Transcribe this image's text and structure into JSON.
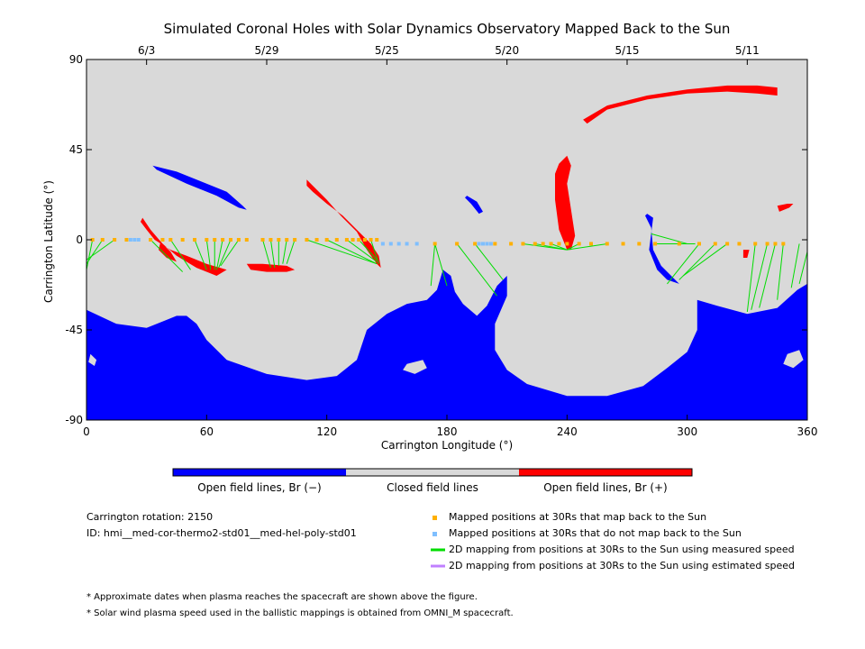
{
  "chart_data": {
    "type": "map",
    "title": "Simulated Coronal Holes with Solar Dynamics Observatory Mapped Back to the Sun",
    "xlabel": "Carrington Longitude (°)",
    "ylabel": "Carrington Latitude (°)",
    "xlim": [
      0,
      360
    ],
    "ylim": [
      -90,
      90
    ],
    "x_ticks": [
      "0",
      "60",
      "120",
      "180",
      "240",
      "300",
      "360"
    ],
    "y_ticks": [
      "90",
      "45",
      "0",
      "-45",
      "-90"
    ],
    "top_date_ticks": [
      {
        "label": "6/3",
        "lon": 30
      },
      {
        "label": "5/29",
        "lon": 90
      },
      {
        "label": "5/25",
        "lon": 150
      },
      {
        "label": "5/20",
        "lon": 210
      },
      {
        "label": "5/15",
        "lon": 270
      },
      {
        "label": "5/11",
        "lon": 330
      }
    ],
    "colors": {
      "closed": "#d9d9d9",
      "open_negative": "#0000ff",
      "open_positive": "#ff0000",
      "mapped_yes": "#ffb000",
      "mapped_no": "#7fbfff",
      "measured_line": "#00dd00",
      "estimated_line": "#c080ff"
    },
    "open_negative_regions": [
      [
        [
          0,
          -35
        ],
        [
          15,
          -42
        ],
        [
          30,
          -44
        ],
        [
          40,
          -40
        ],
        [
          45,
          -38
        ],
        [
          50,
          -38
        ],
        [
          55,
          -42
        ],
        [
          60,
          -50
        ],
        [
          70,
          -60
        ],
        [
          90,
          -67
        ],
        [
          110,
          -70
        ],
        [
          125,
          -68
        ],
        [
          135,
          -60
        ],
        [
          140,
          -45
        ],
        [
          150,
          -37
        ],
        [
          160,
          -32
        ],
        [
          170,
          -30
        ],
        [
          175,
          -25
        ],
        [
          178,
          -15
        ],
        [
          182,
          -18
        ],
        [
          184,
          -26
        ],
        [
          188,
          -32
        ],
        [
          195,
          -38
        ],
        [
          200,
          -33
        ],
        [
          205,
          -23
        ],
        [
          210,
          -18
        ],
        [
          210,
          -28
        ],
        [
          204,
          -42
        ],
        [
          204,
          -55
        ],
        [
          210,
          -65
        ],
        [
          220,
          -72
        ],
        [
          240,
          -78
        ],
        [
          260,
          -78
        ],
        [
          278,
          -73
        ],
        [
          290,
          -64
        ],
        [
          300,
          -56
        ],
        [
          305,
          -45
        ],
        [
          305,
          -30
        ],
        [
          315,
          -33
        ],
        [
          330,
          -37
        ],
        [
          345,
          -34
        ],
        [
          355,
          -25
        ],
        [
          360,
          -22
        ],
        [
          360,
          -90
        ],
        [
          0,
          -90
        ]
      ],
      [
        [
          33,
          37
        ],
        [
          45,
          34
        ],
        [
          60,
          28
        ],
        [
          70,
          24
        ],
        [
          78,
          17
        ],
        [
          80,
          15
        ],
        [
          76,
          16
        ],
        [
          65,
          22
        ],
        [
          50,
          28
        ],
        [
          35,
          35
        ]
      ],
      [
        [
          190,
          22
        ],
        [
          195,
          19
        ],
        [
          198,
          14
        ],
        [
          196,
          13
        ],
        [
          192,
          18
        ],
        [
          189,
          21
        ]
      ],
      [
        [
          280,
          13
        ],
        [
          283,
          11
        ],
        [
          281,
          -5
        ],
        [
          285,
          -15
        ],
        [
          290,
          -20
        ],
        [
          296,
          -22
        ],
        [
          294,
          -20
        ],
        [
          287,
          -13
        ],
        [
          283,
          -5
        ],
        [
          282,
          6
        ],
        [
          279,
          12
        ]
      ]
    ],
    "closed_holes_in_negative": [
      [
        [
          2,
          -57
        ],
        [
          5,
          -60
        ],
        [
          4,
          -63
        ],
        [
          1,
          -61
        ]
      ],
      [
        [
          160,
          -62
        ],
        [
          168,
          -60
        ],
        [
          170,
          -64
        ],
        [
          164,
          -67
        ],
        [
          158,
          -65
        ]
      ],
      [
        [
          350,
          -57
        ],
        [
          356,
          -55
        ],
        [
          358,
          -60
        ],
        [
          353,
          -64
        ],
        [
          348,
          -62
        ]
      ]
    ],
    "open_positive_regions": [
      [
        [
          248,
          60
        ],
        [
          260,
          67
        ],
        [
          280,
          72
        ],
        [
          300,
          75
        ],
        [
          320,
          77
        ],
        [
          335,
          77
        ],
        [
          345,
          76
        ],
        [
          345,
          72
        ],
        [
          335,
          73
        ],
        [
          320,
          74
        ],
        [
          300,
          73
        ],
        [
          280,
          70
        ],
        [
          260,
          65
        ],
        [
          250,
          58
        ]
      ],
      [
        [
          240,
          42
        ],
        [
          242,
          37
        ],
        [
          240,
          28
        ],
        [
          242,
          15
        ],
        [
          244,
          2
        ],
        [
          242,
          -5
        ],
        [
          240,
          -5
        ],
        [
          236,
          5
        ],
        [
          234,
          20
        ],
        [
          234,
          33
        ],
        [
          236,
          38
        ]
      ],
      [
        [
          110,
          30
        ],
        [
          113,
          27
        ],
        [
          120,
          20
        ],
        [
          127,
          12
        ],
        [
          135,
          4
        ],
        [
          140,
          -5
        ],
        [
          145,
          -12
        ],
        [
          147,
          -14
        ],
        [
          146,
          -8
        ],
        [
          142,
          -2
        ],
        [
          135,
          5
        ],
        [
          128,
          12
        ],
        [
          120,
          18
        ],
        [
          113,
          24
        ],
        [
          110,
          27
        ]
      ],
      [
        [
          28,
          11
        ],
        [
          32,
          5
        ],
        [
          38,
          -2
        ],
        [
          45,
          -8
        ],
        [
          55,
          -14
        ],
        [
          65,
          -18
        ],
        [
          70,
          -15
        ],
        [
          60,
          -12
        ],
        [
          50,
          -8
        ],
        [
          42,
          -5
        ],
        [
          34,
          0
        ],
        [
          30,
          5
        ],
        [
          27,
          9
        ]
      ],
      [
        [
          37,
          -1
        ],
        [
          42,
          -6
        ],
        [
          45,
          -11
        ],
        [
          40,
          -9
        ],
        [
          36,
          -5
        ]
      ],
      [
        [
          80,
          -12
        ],
        [
          88,
          -12
        ],
        [
          100,
          -13
        ],
        [
          104,
          -15
        ],
        [
          100,
          -16
        ],
        [
          90,
          -16
        ],
        [
          82,
          -15
        ]
      ],
      [
        [
          345,
          17
        ],
        [
          350,
          18
        ],
        [
          353,
          18
        ],
        [
          351,
          16
        ],
        [
          346,
          14
        ]
      ],
      [
        [
          328,
          -5
        ],
        [
          331,
          -5
        ],
        [
          330,
          -9
        ],
        [
          328,
          -9
        ]
      ]
    ],
    "mapped_yes_points": [
      [
        3,
        0
      ],
      [
        8,
        0
      ],
      [
        14,
        0
      ],
      [
        20,
        0
      ],
      [
        32,
        0
      ],
      [
        38,
        0
      ],
      [
        42,
        0
      ],
      [
        48,
        0
      ],
      [
        54,
        0
      ],
      [
        60,
        0
      ],
      [
        64,
        0
      ],
      [
        68,
        0
      ],
      [
        72,
        0
      ],
      [
        76,
        0
      ],
      [
        80,
        0
      ],
      [
        88,
        0
      ],
      [
        92,
        0
      ],
      [
        96,
        0
      ],
      [
        100,
        0
      ],
      [
        104,
        0
      ],
      [
        110,
        0
      ],
      [
        115,
        0
      ],
      [
        120,
        0
      ],
      [
        125,
        0
      ],
      [
        130,
        0
      ],
      [
        133,
        0
      ],
      [
        136,
        0
      ],
      [
        139,
        0
      ],
      [
        142,
        0
      ],
      [
        145,
        0
      ],
      [
        174,
        -2
      ],
      [
        185,
        -2
      ],
      [
        194,
        -2
      ],
      [
        204,
        -2
      ],
      [
        212,
        -2
      ],
      [
        218,
        -2
      ],
      [
        224,
        -2
      ],
      [
        228,
        -2
      ],
      [
        232,
        -2
      ],
      [
        236,
        -2
      ],
      [
        240,
        -2
      ],
      [
        246,
        -2
      ],
      [
        252,
        -2
      ],
      [
        260,
        -2
      ],
      [
        268,
        -2
      ],
      [
        276,
        -2
      ],
      [
        284,
        -2
      ],
      [
        296,
        -2
      ],
      [
        306,
        -2
      ],
      [
        314,
        -2
      ],
      [
        320,
        -2
      ],
      [
        326,
        -2
      ],
      [
        334,
        -2
      ],
      [
        340,
        -2
      ],
      [
        344,
        -2
      ],
      [
        348,
        -2
      ]
    ],
    "mapped_no_points": [
      [
        22,
        0
      ],
      [
        24,
        0
      ],
      [
        26,
        0
      ],
      [
        148,
        -2
      ],
      [
        152,
        -2
      ],
      [
        156,
        -2
      ],
      [
        160,
        -2
      ],
      [
        165,
        -2
      ],
      [
        196,
        -2
      ],
      [
        198,
        -2
      ],
      [
        200,
        -2
      ],
      [
        202,
        -2
      ]
    ],
    "measured_speed_lines": [
      {
        "from": [
          3,
          0
        ],
        "to": [
          0,
          -15
        ]
      },
      {
        "from": [
          8,
          0
        ],
        "to": [
          0,
          -12
        ]
      },
      {
        "from": [
          14,
          0
        ],
        "to": [
          0,
          -10
        ]
      },
      {
        "from": [
          32,
          0
        ],
        "to": [
          48,
          -16
        ]
      },
      {
        "from": [
          42,
          0
        ],
        "to": [
          52,
          -15
        ]
      },
      {
        "from": [
          54,
          0
        ],
        "to": [
          60,
          -15
        ]
      },
      {
        "from": [
          60,
          0
        ],
        "to": [
          62,
          -15
        ]
      },
      {
        "from": [
          64,
          0
        ],
        "to": [
          64,
          -15
        ]
      },
      {
        "from": [
          68,
          0
        ],
        "to": [
          65,
          -15
        ]
      },
      {
        "from": [
          72,
          0
        ],
        "to": [
          66,
          -14
        ]
      },
      {
        "from": [
          76,
          0
        ],
        "to": [
          67,
          -13
        ]
      },
      {
        "from": [
          88,
          0
        ],
        "to": [
          92,
          -14
        ]
      },
      {
        "from": [
          92,
          0
        ],
        "to": [
          94,
          -14
        ]
      },
      {
        "from": [
          96,
          0
        ],
        "to": [
          96,
          -13
        ]
      },
      {
        "from": [
          100,
          0
        ],
        "to": [
          98,
          -12
        ]
      },
      {
        "from": [
          104,
          0
        ],
        "to": [
          100,
          -12
        ]
      },
      {
        "from": [
          110,
          0
        ],
        "to": [
          145,
          -12
        ]
      },
      {
        "from": [
          120,
          0
        ],
        "to": [
          145,
          -12
        ]
      },
      {
        "from": [
          130,
          0
        ],
        "to": [
          145,
          -11
        ]
      },
      {
        "from": [
          136,
          0
        ],
        "to": [
          145,
          -10
        ]
      },
      {
        "from": [
          142,
          0
        ],
        "to": [
          146,
          -12
        ]
      },
      {
        "from": [
          174,
          -2
        ],
        "to": [
          172,
          -23
        ]
      },
      {
        "from": [
          174,
          -2
        ],
        "to": [
          180,
          -23
        ]
      },
      {
        "from": [
          185,
          -2
        ],
        "to": [
          205,
          -28
        ]
      },
      {
        "from": [
          194,
          -2
        ],
        "to": [
          208,
          -20
        ]
      },
      {
        "from": [
          218,
          -2
        ],
        "to": [
          240,
          -5
        ]
      },
      {
        "from": [
          224,
          -2
        ],
        "to": [
          240,
          -5
        ]
      },
      {
        "from": [
          232,
          -2
        ],
        "to": [
          240,
          -5
        ]
      },
      {
        "from": [
          246,
          -2
        ],
        "to": [
          240,
          -5
        ]
      },
      {
        "from": [
          260,
          -2
        ],
        "to": [
          240,
          -5
        ]
      },
      {
        "from": [
          282,
          3
        ],
        "to": [
          300,
          -2
        ]
      },
      {
        "from": [
          284,
          -2
        ],
        "to": [
          304,
          -2
        ]
      },
      {
        "from": [
          306,
          -2
        ],
        "to": [
          290,
          -22
        ]
      },
      {
        "from": [
          314,
          -2
        ],
        "to": [
          296,
          -20
        ]
      },
      {
        "from": [
          320,
          -2
        ],
        "to": [
          298,
          -18
        ]
      },
      {
        "from": [
          334,
          -2
        ],
        "to": [
          330,
          -36
        ]
      },
      {
        "from": [
          340,
          -2
        ],
        "to": [
          332,
          -35
        ]
      },
      {
        "from": [
          344,
          -2
        ],
        "to": [
          336,
          -34
        ]
      },
      {
        "from": [
          348,
          -2
        ],
        "to": [
          345,
          -30
        ]
      },
      {
        "from": [
          356,
          -2
        ],
        "to": [
          352,
          -24
        ]
      },
      {
        "from": [
          360,
          -6
        ],
        "to": [
          356,
          -22
        ]
      }
    ],
    "colorbar": [
      "Open field lines, Br (−)",
      "Closed field lines",
      "Open field lines, Br (+)"
    ]
  },
  "info": {
    "rotation": "Carrington rotation: 2150",
    "id": "ID: hmi__med-cor-thermo2-std01__med-hel-poly-std01"
  },
  "legend": [
    {
      "label": "Mapped positions at 30Rs that map back to the Sun",
      "kind": "square",
      "color": "#ffb000"
    },
    {
      "label": "Mapped positions at 30Rs that do not map back to the Sun",
      "kind": "square",
      "color": "#7fbfff"
    },
    {
      "label": "2D mapping from positions at 30Rs to the Sun using measured speed",
      "kind": "line",
      "color": "#00dd00"
    },
    {
      "label": "2D mapping from positions at 30Rs to the Sun using estimated speed",
      "kind": "line",
      "color": "#c080ff"
    }
  ],
  "notes": [
    "* Approximate dates when plasma reaches the spacecraft are shown above the figure.",
    "* Solar wind plasma speed used in the ballistic mappings is obtained from OMNI_M spacecraft."
  ]
}
